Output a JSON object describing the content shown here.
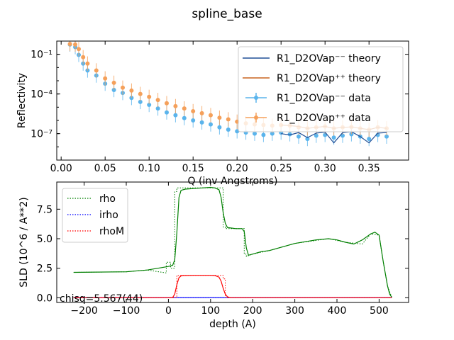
{
  "figure_title": "spline_base",
  "chart_data": [
    {
      "type": "scatter",
      "panel": "reflectivity",
      "xlabel": "Q (inv Angstroms)",
      "ylabel": "Reflectivity",
      "xlim": [
        -0.005,
        0.395
      ],
      "ylim": [
        1e-09,
        1.0
      ],
      "yscale": "log",
      "x_ticks": [
        0.0,
        0.05,
        0.1,
        0.15,
        0.2,
        0.25,
        0.3,
        0.35
      ],
      "x_tick_labels": [
        "0.00",
        "0.05",
        "0.10",
        "0.15",
        "0.20",
        "0.25",
        "0.30",
        "0.35"
      ],
      "y_ticks": [
        0.1,
        0.0001,
        1e-07
      ],
      "y_tick_labels": [
        "10⁻¹",
        "10⁻⁴",
        "10⁻⁷"
      ],
      "legend_position": "upper right",
      "legend": [
        {
          "label": "R1_D2OVap⁻⁻ theory",
          "kind": "line",
          "color": "#1f4e96"
        },
        {
          "label": "R1_D2OVap⁺⁺ theory",
          "kind": "line",
          "color": "#c8641e"
        },
        {
          "label": "R1_D2OVap⁻⁻ data",
          "kind": "errorbar",
          "color": "#5ab4ec"
        },
        {
          "label": "R1_D2OVap⁺⁺ data",
          "kind": "errorbar",
          "color": "#f5a05a"
        }
      ],
      "series": [
        {
          "name": "R1_D2OVap⁻⁻ data",
          "color": "#5ab4ec",
          "x": [
            0.01,
            0.016,
            0.02,
            0.025,
            0.03,
            0.04,
            0.05,
            0.06,
            0.07,
            0.08,
            0.09,
            0.1,
            0.11,
            0.12,
            0.13,
            0.14,
            0.15,
            0.16,
            0.17,
            0.18,
            0.19,
            0.2,
            0.21,
            0.22,
            0.23,
            0.24,
            0.25,
            0.26,
            0.27,
            0.28,
            0.29,
            0.3,
            0.31,
            0.32,
            0.33,
            0.34,
            0.35,
            0.36,
            0.37
          ],
          "y": [
            0.55,
            0.35,
            0.09,
            0.02,
            0.006,
            0.0025,
            0.0006,
            0.0002,
            0.00012,
            5e-05,
            2.5e-05,
            1.5e-05,
            8e-06,
            4e-06,
            2.5e-06,
            1.5e-06,
            1e-06,
            7e-07,
            5e-07,
            3e-07,
            2e-07,
            1.5e-07,
            1.2e-07,
            1e-07,
            8e-08,
            1e-07,
            1.2e-07,
            9e-08,
            6e-08,
            4e-08,
            7e-08,
            8e-08,
            5e-08,
            7e-08,
            9e-08,
            6e-08,
            4e-08,
            8e-08,
            6e-08
          ]
        },
        {
          "name": "R1_D2OVap⁺⁺ data",
          "color": "#f5a05a",
          "x": [
            0.01,
            0.016,
            0.02,
            0.025,
            0.03,
            0.04,
            0.05,
            0.06,
            0.07,
            0.08,
            0.09,
            0.1,
            0.11,
            0.12,
            0.13,
            0.14,
            0.15,
            0.16,
            0.17,
            0.18,
            0.19,
            0.2,
            0.21,
            0.22,
            0.23,
            0.24,
            0.25,
            0.26,
            0.27,
            0.28,
            0.29,
            0.3,
            0.31,
            0.32,
            0.33,
            0.34,
            0.35,
            0.36,
            0.37
          ],
          "y": [
            0.6,
            0.55,
            0.25,
            0.06,
            0.02,
            0.006,
            0.0015,
            0.0007,
            0.0003,
            0.00018,
            0.0001,
            6e-05,
            3.5e-05,
            2e-05,
            1.2e-05,
            8e-06,
            5e-06,
            3.5e-06,
            2.5e-06,
            1.6e-06,
            1.2e-06,
            8e-07,
            6e-07,
            5e-07,
            4.5e-07,
            4e-07,
            4.5e-07,
            4e-07,
            3e-07,
            2.5e-07,
            3e-07,
            3.5e-07,
            2.5e-07,
            3e-07,
            3.2e-07,
            2.5e-07,
            2e-07,
            3e-07,
            2.5e-07
          ]
        },
        {
          "name": "R1_D2OVap⁻⁻ theory",
          "color": "#1f4e96",
          "x": [
            0.25,
            0.26,
            0.27,
            0.28,
            0.29,
            0.3,
            0.31,
            0.32,
            0.33,
            0.34,
            0.35,
            0.36,
            0.37
          ],
          "y": [
            1e-07,
            8e-08,
            1.2e-07,
            5e-08,
            1.1e-07,
            1.3e-07,
            2e-08,
            1.2e-07,
            1.4e-07,
            6e-08,
            2e-08,
            1.1e-07,
            1.2e-07
          ]
        },
        {
          "name": "R1_D2OVap⁺⁺ theory",
          "color": "#c8641e",
          "x": [
            0.25,
            0.26,
            0.27,
            0.28,
            0.29,
            0.3,
            0.31,
            0.32,
            0.33,
            0.34,
            0.35,
            0.36,
            0.37
          ],
          "y": [
            4.5e-07,
            4e-07,
            3.5e-07,
            2.5e-07,
            3e-07,
            3.5e-07,
            2.5e-07,
            3e-07,
            3.2e-07,
            2.5e-07,
            2e-07,
            3e-07,
            2.5e-07
          ]
        }
      ]
    },
    {
      "type": "line",
      "panel": "sld",
      "xlabel": "depth (A)",
      "ylabel": "SLD (10^6 / A**2)",
      "xlim": [
        -265,
        570
      ],
      "ylim": [
        -0.4,
        9.8
      ],
      "x_ticks": [
        -200,
        -100,
        0,
        100,
        200,
        300,
        400,
        500
      ],
      "x_tick_labels": [
        "−200",
        "−100",
        "0",
        "100",
        "200",
        "300",
        "400",
        "500"
      ],
      "y_ticks": [
        0.0,
        2.5,
        5.0,
        7.5
      ],
      "y_tick_labels": [
        "0.0",
        "2.5",
        "5.0",
        "7.5"
      ],
      "legend_position": "upper left",
      "annotation": "chisq=5.567(44)",
      "series": [
        {
          "name": "rho",
          "color": "#007f00",
          "style": "solid",
          "x": [
            -225,
            -100,
            -50,
            0,
            10,
            15,
            20,
            25,
            30,
            40,
            60,
            80,
            100,
            110,
            120,
            125,
            130,
            135,
            140,
            150,
            160,
            170,
            175,
            180,
            185,
            190,
            200,
            220,
            240,
            260,
            300,
            350,
            380,
            400,
            420,
            440,
            460,
            480,
            490,
            500,
            510,
            520,
            525,
            530
          ],
          "y": [
            2.15,
            2.2,
            2.35,
            2.65,
            2.75,
            3.2,
            5.5,
            8.5,
            9.1,
            9.2,
            9.25,
            9.3,
            9.35,
            9.3,
            9.15,
            8.5,
            7.2,
            6.3,
            5.95,
            5.9,
            5.85,
            5.85,
            5.85,
            5.6,
            4.2,
            3.6,
            3.7,
            3.9,
            4.0,
            4.2,
            4.6,
            4.9,
            5.0,
            4.9,
            4.7,
            4.55,
            4.9,
            5.4,
            5.55,
            5.3,
            3.0,
            1.0,
            0.3,
            0.05
          ]
        },
        {
          "name": "rho (dotted)",
          "color": "#007f00",
          "style": "dotted",
          "x": [
            -225,
            -100,
            -50,
            -5,
            -5,
            5,
            5,
            15,
            15,
            20,
            20,
            130,
            130,
            135,
            135,
            180,
            180,
            185,
            185,
            200,
            240,
            300,
            380,
            420,
            460,
            480,
            500,
            510,
            520,
            530
          ],
          "y": [
            2.15,
            2.2,
            2.35,
            2.1,
            3.0,
            3.0,
            2.5,
            2.5,
            9.0,
            9.0,
            9.3,
            9.3,
            6.0,
            6.0,
            5.85,
            5.85,
            3.7,
            3.7,
            3.5,
            3.7,
            4.0,
            4.6,
            5.0,
            4.7,
            4.55,
            5.4,
            5.3,
            3.0,
            1.0,
            0.05
          ]
        },
        {
          "name": "irho",
          "color": "#0000ff",
          "style": "solid",
          "x": [
            -225,
            530
          ],
          "y": [
            0.01,
            0.01
          ]
        },
        {
          "name": "irho (dotted)",
          "color": "#0000ff",
          "style": "dotted",
          "x": [
            -225,
            530
          ],
          "y": [
            0.01,
            0.01
          ]
        },
        {
          "name": "rhoM",
          "color": "#ff0000",
          "style": "solid",
          "x": [
            -225,
            0,
            10,
            15,
            20,
            25,
            30,
            35,
            60,
            100,
            110,
            120,
            125,
            130,
            135,
            140,
            145,
            150,
            530
          ],
          "y": [
            0.0,
            0.0,
            0.02,
            0.3,
            1.1,
            1.7,
            1.85,
            1.88,
            1.9,
            1.9,
            1.88,
            1.75,
            1.4,
            0.8,
            0.3,
            0.08,
            0.02,
            0.0,
            0.0
          ]
        },
        {
          "name": "rhoM (dotted)",
          "color": "#ff0000",
          "style": "dotted",
          "x": [
            -225,
            20,
            20,
            130,
            130,
            135,
            135,
            530
          ],
          "y": [
            0.0,
            0.0,
            1.9,
            1.9,
            1.6,
            1.6,
            0.0,
            0.0
          ]
        }
      ],
      "legend": [
        {
          "label": "rho",
          "color": "#007f00"
        },
        {
          "label": "irho",
          "color": "#0000ff"
        },
        {
          "label": "rhoM",
          "color": "#ff0000"
        }
      ]
    }
  ]
}
